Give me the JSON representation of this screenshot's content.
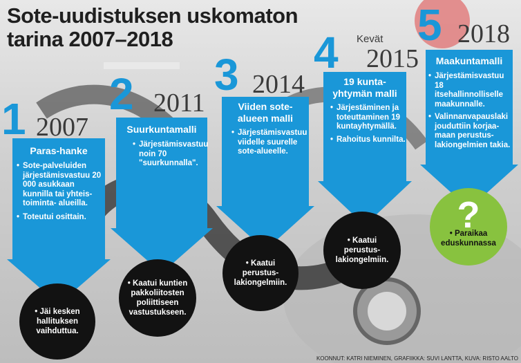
{
  "title_lines": [
    "Sote-uudistuksen uskomaton",
    "tarina 2007–2018"
  ],
  "colors": {
    "arrow_blue": "#1a97d8",
    "circle_black": "#121212",
    "circle_green": "#88c23f",
    "heading_text": "#1f1f1f"
  },
  "steps": [
    {
      "number": "1",
      "year": "2007",
      "heading": "Paras-hanke",
      "bullets": [
        "Sote-palveluiden järjestämisvastuu 20 000 asukkaan kunnilla tai yhteis-toiminta- alueilla.",
        "Toteutui osittain."
      ],
      "outcome": "Jäi kesken hallituksen vaihduttua."
    },
    {
      "number": "2",
      "year": "2011",
      "heading": "Suurkuntamalli",
      "bullets": [
        "Järjestämisvastuu noin 70 \"suurkunnalla\"."
      ],
      "outcome": "Kaatui kuntien pakkoliitosten poliittiseen vastustukseen."
    },
    {
      "number": "3",
      "year": "2014",
      "heading": "Viiden sote-alueen malli",
      "bullets": [
        "Järjestämisvastuu viidelle suurelle sote-alueelle."
      ],
      "outcome": "Kaatui perustus-lakiongelmiin."
    },
    {
      "number": "4",
      "season": "Kevät",
      "year": "2015",
      "heading": "19 kunta-yhtymän malli",
      "bullets": [
        "Järjestäminen ja toteuttaminen 19 kuntayhtymällä.",
        "Rahoitus kunnilta."
      ],
      "outcome": "Kaatui perustus-lakiongelmiin."
    },
    {
      "number": "5",
      "year": "2018",
      "heading": "Maakuntamalli",
      "bullets": [
        "Järjestämisvastuu 18 itsehallinnolliselle maakunnalle.",
        "Valinnanvapauslaki jouduttiin korjaa-maan perustus-lakiongelmien takia."
      ],
      "outcome_mark": "?",
      "outcome": "Paraikaa eduskunnassa"
    }
  ],
  "credits": "KOONNUT: KATRI NIEMINEN, GRAFIIKKA: SUVI LANTTA, KUVA: RISTO AALTO"
}
